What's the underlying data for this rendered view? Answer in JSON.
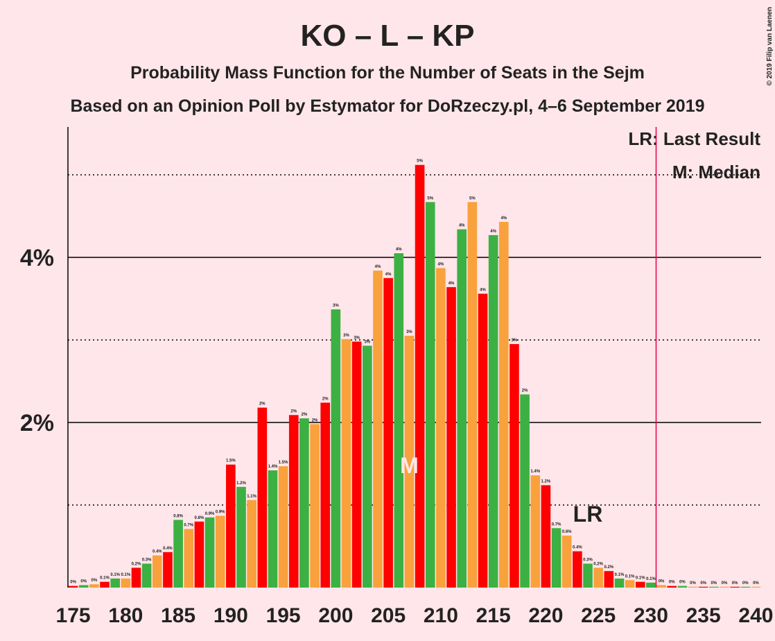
{
  "chart_data": {
    "type": "bar",
    "title": "KO – L – KP",
    "subtitle": "Probability Mass Function for the Number of Seats in the Sejm",
    "subtitle2": "Based on an Opinion Poll by Estymator for DoRzeczy.pl, 4–6 September 2019",
    "copyright": "© 2019 Filip van Laenen",
    "x": [
      175,
      176,
      177,
      178,
      179,
      180,
      181,
      182,
      183,
      184,
      185,
      186,
      187,
      188,
      189,
      190,
      191,
      192,
      193,
      194,
      195,
      196,
      197,
      198,
      199,
      200,
      201,
      202,
      203,
      204,
      205,
      206,
      207,
      208,
      209,
      210,
      211,
      212,
      213,
      214,
      215,
      216,
      217,
      218,
      219,
      220,
      221,
      222,
      223,
      224,
      225,
      226,
      227,
      228,
      229,
      230,
      231,
      232,
      233,
      234,
      235,
      236,
      237,
      238,
      239,
      240
    ],
    "values": [
      0.02,
      0.03,
      0.04,
      0.07,
      0.11,
      0.11,
      0.24,
      0.29,
      0.39,
      0.43,
      0.82,
      0.71,
      0.8,
      0.85,
      0.87,
      1.49,
      1.22,
      1.06,
      2.18,
      1.42,
      1.47,
      2.09,
      2.05,
      1.98,
      2.24,
      3.37,
      3.01,
      2.98,
      2.93,
      3.84,
      3.75,
      4.05,
      3.05,
      5.12,
      4.67,
      3.87,
      3.64,
      4.34,
      4.67,
      3.56,
      4.27,
      4.43,
      2.95,
      2.34,
      1.36,
      1.24,
      0.72,
      0.63,
      0.44,
      0.29,
      0.24,
      0.2,
      0.11,
      0.09,
      0.07,
      0.06,
      0.03,
      0.02,
      0.02,
      0.01,
      0.01,
      0.01,
      0.01,
      0.01,
      0.01,
      0.01
    ],
    "value_labels": [
      "0%",
      "0%",
      "0%",
      "0.1%",
      "0.1%",
      "0.1%",
      "0.2%",
      "0.3%",
      "0.4%",
      "0.4%",
      "0.8%",
      "0.7%",
      "0.8%",
      "0.9%",
      "0.9%",
      "1.5%",
      "1.2%",
      "1.1%",
      "2%",
      "1.4%",
      "1.5%",
      "2%",
      "2%",
      "2%",
      "2%",
      "3%",
      "3%",
      "3%",
      "3%",
      "4%",
      "4%",
      "4%",
      "3%",
      "5%",
      "5%",
      "4%",
      "4%",
      "4%",
      "5%",
      "4%",
      "4%",
      "4%",
      "3%",
      "2%",
      "1.4%",
      "1.2%",
      "0.7%",
      "0.6%",
      "0.4%",
      "0.3%",
      "0.2%",
      "0.2%",
      "0.1%",
      "0.1%",
      "0.1%",
      "0.1%",
      "0%",
      "0%",
      "0%",
      "0%",
      "0%",
      "0%",
      "0%",
      "0%",
      "0%",
      "0%"
    ],
    "colors": [
      "#ff0000",
      "#3cb043",
      "#f9a13c"
    ],
    "xlim": [
      174.5,
      240.5
    ],
    "xticks": [
      175,
      180,
      185,
      190,
      195,
      200,
      205,
      210,
      215,
      220,
      225,
      230,
      235,
      240
    ],
    "ylim": [
      0,
      5.58
    ],
    "yticks": [
      {
        "value": 2,
        "label": "2%"
      },
      {
        "value": 4,
        "label": "4%"
      }
    ],
    "minor_yticks": [
      1,
      3,
      5
    ],
    "median": 207,
    "median_label": "M",
    "last_result": 231,
    "last_result_label": "LR",
    "legend": [
      "LR: Last Result",
      "M: Median"
    ]
  }
}
